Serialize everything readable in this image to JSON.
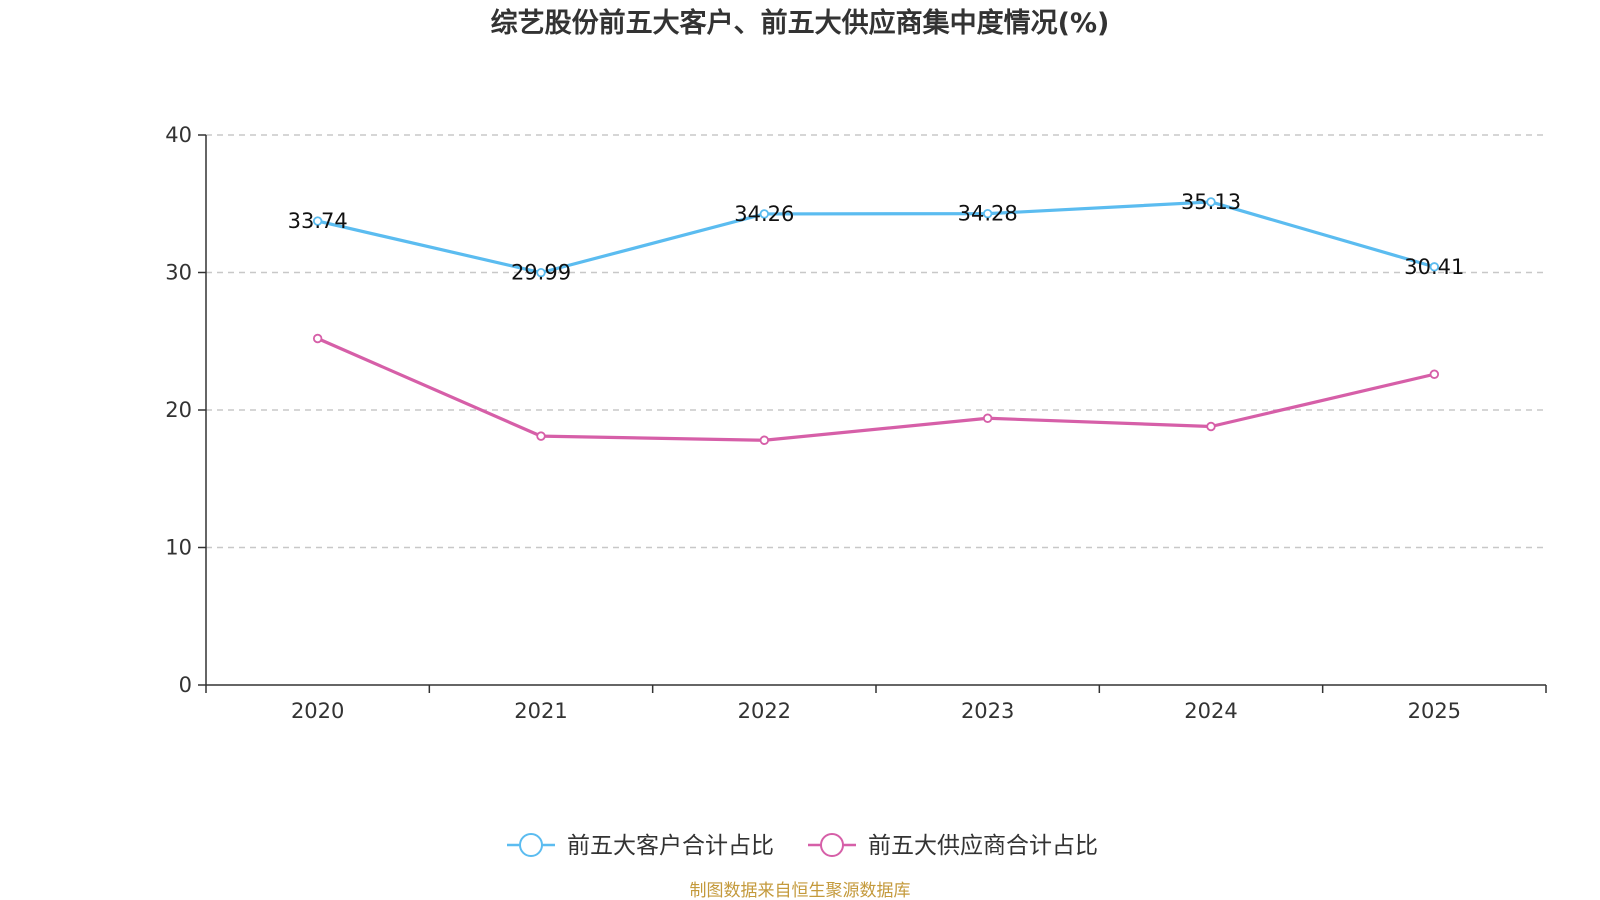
{
  "chart_data": {
    "type": "line",
    "title": "综艺股份前五大客户、前五大供应商集中度情况(%)",
    "categories": [
      "2020",
      "2021",
      "2022",
      "2023",
      "2024",
      "2025"
    ],
    "ylim": [
      0,
      40
    ],
    "yticks": [
      0,
      10,
      20,
      30,
      40
    ],
    "grid": true,
    "legend_position": "bottom-center",
    "series": [
      {
        "name": "前五大客户合计占比",
        "color": "#5bbcf0",
        "values": [
          33.74,
          29.99,
          34.26,
          34.28,
          35.13,
          30.41
        ],
        "labels": [
          "33.74",
          "29.99",
          "34.26",
          "34.28",
          "35.13",
          "30.41"
        ],
        "show_labels": true
      },
      {
        "name": "前五大供应商合计占比",
        "color": "#d65fa8",
        "values": [
          25.2,
          18.1,
          17.8,
          19.4,
          18.8,
          22.6
        ],
        "show_labels": false
      }
    ]
  },
  "source": "制图数据来自恒生聚源数据库"
}
